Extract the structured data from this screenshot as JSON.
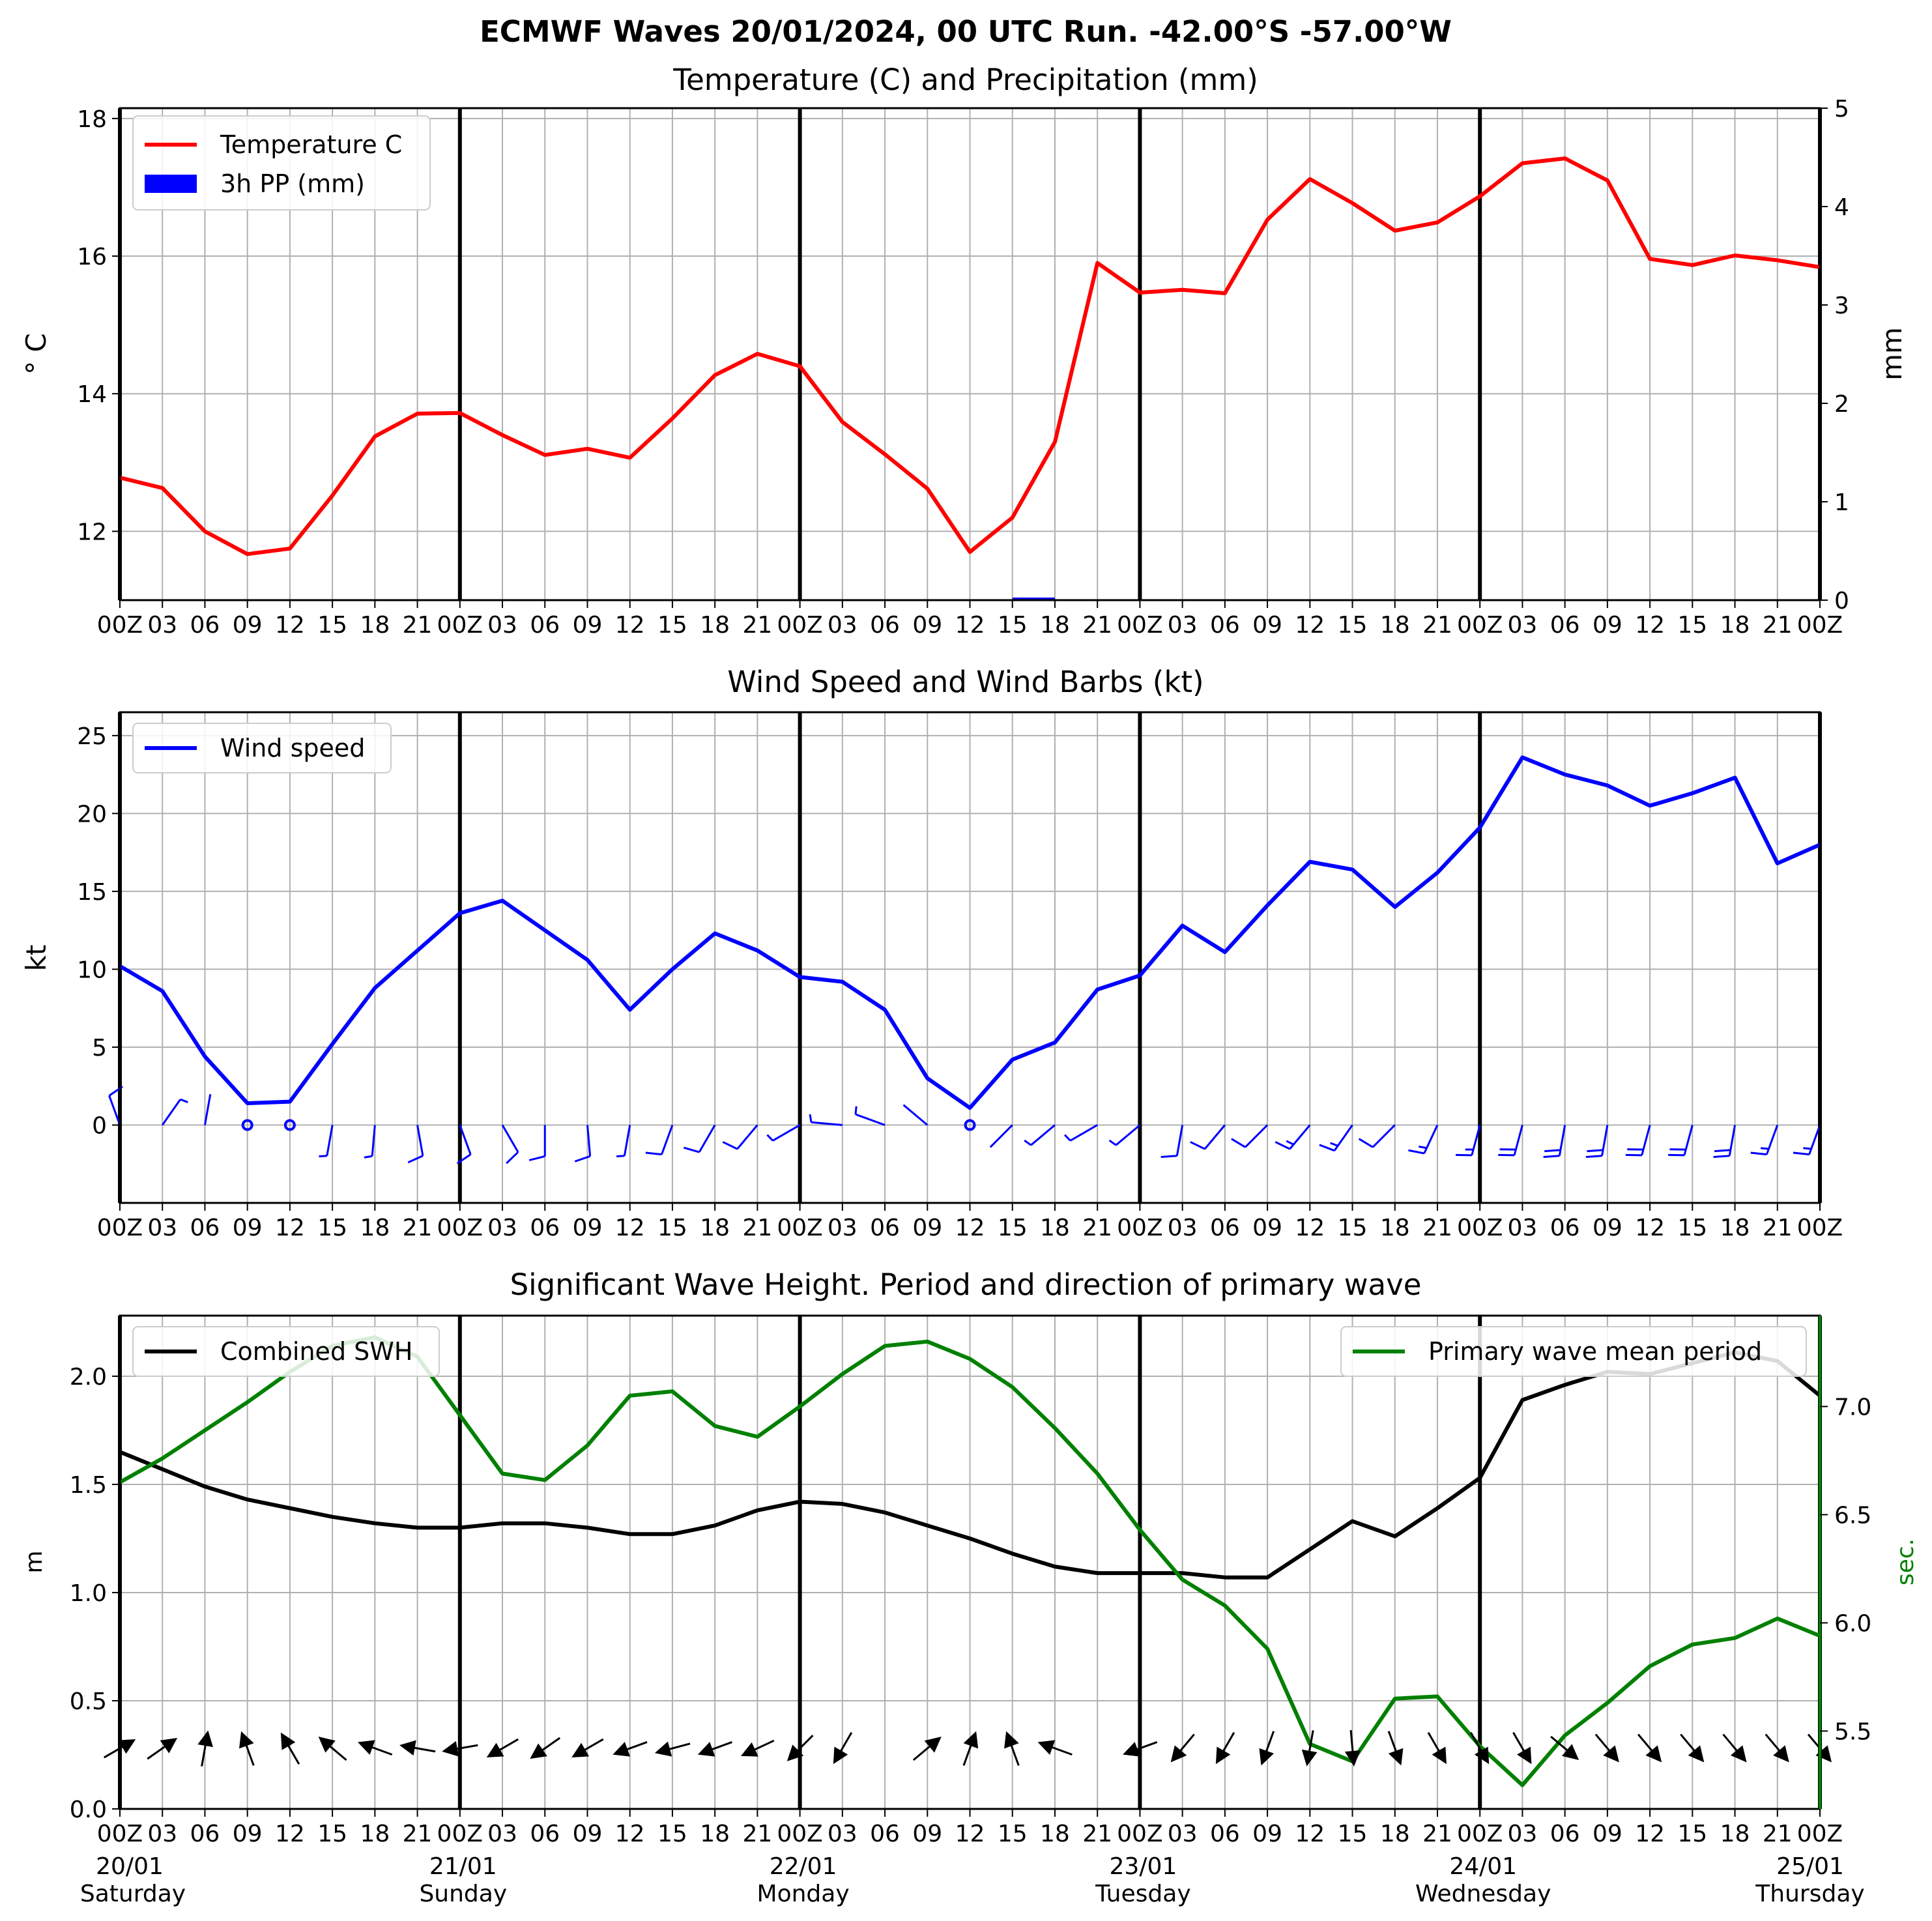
{
  "title": "ECMWF Waves 20/01/2024, 00 UTC Run. -42.00°S -57.00°W",
  "x_tick_labels": [
    "00Z",
    "03",
    "06",
    "09",
    "12",
    "15",
    "18",
    "21",
    "00Z",
    "03",
    "06",
    "09",
    "12",
    "15",
    "18",
    "21",
    "00Z",
    "03",
    "06",
    "09",
    "12",
    "15",
    "18",
    "21",
    "00Z",
    "03",
    "06",
    "09",
    "12",
    "15",
    "18",
    "21",
    "00Z",
    "03",
    "06",
    "09",
    "12",
    "15",
    "18",
    "21",
    "00Z"
  ],
  "x_day_labels": [
    {
      "date": "20/01",
      "weekday": "Saturday"
    },
    {
      "date": "21/01",
      "weekday": "Sunday"
    },
    {
      "date": "22/01",
      "weekday": "Monday"
    },
    {
      "date": "23/01",
      "weekday": "Tuesday"
    },
    {
      "date": "24/01",
      "weekday": "Wednesday"
    },
    {
      "date": "25/01",
      "weekday": "Thursday"
    }
  ],
  "chart_data": [
    {
      "type": "line",
      "title": "Temperature (C) and Precipitation (mm)",
      "ylabel": "$^\\circ$C",
      "ylabel_display": "° C",
      "y2label": "mm",
      "xlim": [
        "2024-01-20 00Z",
        "2024-01-25 00Z"
      ],
      "ylim": [
        11,
        18.15
      ],
      "y_ticks": [
        12,
        14,
        16,
        18
      ],
      "y2lim": [
        0,
        5
      ],
      "y2_ticks": [
        0,
        1,
        2,
        3,
        4,
        5
      ],
      "grid": true,
      "legend": "top-left",
      "series": [
        {
          "name": "Temperature C",
          "color": "#ff0000",
          "x": [
            "20/01 00Z",
            "20/01 03",
            "20/01 06",
            "20/01 09",
            "20/01 12",
            "20/01 15",
            "20/01 18",
            "20/01 21",
            "21/01 00Z",
            "21/01 03",
            "21/01 06",
            "21/01 09",
            "21/01 12",
            "21/01 15",
            "21/01 18",
            "21/01 21",
            "22/01 00Z",
            "22/01 03",
            "22/01 06",
            "22/01 09",
            "22/01 12",
            "22/01 15",
            "22/01 18",
            "22/01 21",
            "23/01 00Z",
            "23/01 03",
            "23/01 06",
            "23/01 09",
            "23/01 12",
            "23/01 15",
            "23/01 18",
            "23/01 21",
            "24/01 00Z",
            "24/01 03",
            "24/01 06",
            "24/01 09",
            "24/01 12",
            "24/01 15",
            "24/01 18",
            "24/01 21",
            "25/01 00Z"
          ],
          "values": [
            12.78,
            12.63,
            12.0,
            11.67,
            11.75,
            12.52,
            13.38,
            13.71,
            13.72,
            13.4,
            13.11,
            13.2,
            13.07,
            13.64,
            14.27,
            14.58,
            14.4,
            13.59,
            13.12,
            12.62,
            11.7,
            12.2,
            13.3,
            15.9,
            15.47,
            15.51,
            15.46,
            16.53,
            17.12,
            16.77,
            16.37,
            16.49,
            16.87,
            17.35,
            17.42,
            17.1,
            15.96,
            15.87,
            16.01,
            15.94,
            15.84
          ]
        },
        {
          "name": "3h PP (mm)",
          "color": "#0000ff",
          "type": "bar",
          "axis": "y2",
          "x": [
            "22/01 15"
          ],
          "values": [
            0.02
          ]
        }
      ]
    },
    {
      "type": "line",
      "title": "Wind Speed and Wind Barbs (kt)",
      "ylabel": "kt",
      "ylim": [
        -5,
        26.5
      ],
      "y_ticks": [
        0,
        5,
        10,
        15,
        20,
        25
      ],
      "grid": true,
      "legend": "top-left",
      "series": [
        {
          "name": "Wind speed",
          "color": "#0000ff",
          "values": [
            10.2,
            8.6,
            4.4,
            1.4,
            1.5,
            5.2,
            8.8,
            11.2,
            13.6,
            14.4,
            12.5,
            10.6,
            7.4,
            10.0,
            12.3,
            11.2,
            9.5,
            9.2,
            7.4,
            3.0,
            1.1,
            4.2,
            5.3,
            8.7,
            9.6,
            12.8,
            11.1,
            14.1,
            16.9,
            16.4,
            14.0,
            16.2,
            19.1,
            23.6,
            22.5,
            21.8,
            20.5,
            21.3,
            22.3,
            16.8,
            18.0
          ]
        },
        {
          "name": "wind barbs",
          "color": "#0000ff",
          "direction_deg": [
            340,
            35,
            10,
            null,
            null,
            190,
            185,
            170,
            160,
            150,
            180,
            175,
            190,
            200,
            210,
            220,
            240,
            275,
            290,
            310,
            null,
            225,
            230,
            240,
            230,
            190,
            220,
            225,
            220,
            215,
            225,
            205,
            195,
            195,
            190,
            190,
            195,
            195,
            190,
            200,
            200
          ]
        }
      ]
    },
    {
      "type": "line",
      "title": "Significant Wave Height. Period and direction of primary wave",
      "ylabel": "m",
      "y2label": "sec.",
      "ylim": [
        0,
        2.28
      ],
      "y_ticks": [
        0.0,
        0.5,
        1.0,
        1.5,
        2.0
      ],
      "y2lim": [
        5.14,
        7.42
      ],
      "y2_ticks": [
        5.5,
        6.0,
        6.5,
        7.0
      ],
      "grid": true,
      "series": [
        {
          "name": "Combined SWH",
          "color": "#000000",
          "legend": "top-left",
          "values": [
            1.65,
            1.57,
            1.49,
            1.43,
            1.39,
            1.35,
            1.32,
            1.3,
            1.3,
            1.32,
            1.32,
            1.3,
            1.27,
            1.27,
            1.31,
            1.38,
            1.42,
            1.41,
            1.37,
            1.31,
            1.25,
            1.18,
            1.12,
            1.09,
            1.09,
            1.09,
            1.07,
            1.07,
            1.2,
            1.33,
            1.26,
            1.39,
            1.53,
            1.89,
            1.96,
            2.02,
            2.01,
            2.06,
            2.11,
            2.07,
            1.91
          ]
        },
        {
          "name": "Primary wave mean period",
          "color": "#008000",
          "axis": "y2",
          "legend": "top-right",
          "values": [
            6.65,
            6.76,
            6.89,
            7.02,
            7.16,
            7.28,
            7.32,
            7.23,
            6.96,
            6.69,
            6.66,
            6.82,
            7.05,
            7.07,
            6.91,
            6.86,
            7.0,
            7.15,
            7.28,
            7.3,
            7.22,
            7.09,
            6.9,
            6.69,
            6.43,
            6.2,
            6.08,
            5.88,
            5.44,
            5.36,
            5.65,
            5.66,
            5.43,
            5.25,
            5.48,
            5.63,
            5.8,
            5.9,
            5.93,
            6.02,
            5.94
          ]
        },
        {
          "name": "primary wave direction",
          "color": "#000000",
          "direction_deg": [
            240,
            235,
            190,
            160,
            150,
            130,
            110,
            100,
            80,
            60,
            55,
            60,
            70,
            75,
            70,
            65,
            45,
            30,
            null,
            230,
            200,
            160,
            110,
            null,
            70,
            40,
            30,
            20,
            10,
            355,
            340,
            330,
            330,
            330,
            310,
            320,
            320,
            320,
            320,
            320,
            320
          ]
        }
      ]
    }
  ]
}
